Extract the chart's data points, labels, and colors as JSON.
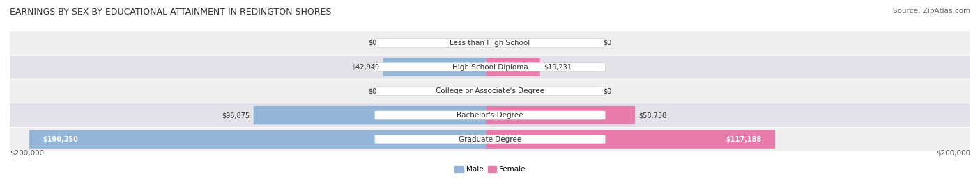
{
  "title": "EARNINGS BY SEX BY EDUCATIONAL ATTAINMENT IN REDINGTON SHORES",
  "source": "Source: ZipAtlas.com",
  "categories": [
    "Less than High School",
    "High School Diploma",
    "College or Associate's Degree",
    "Bachelor's Degree",
    "Graduate Degree"
  ],
  "male_values": [
    0,
    42949,
    0,
    96875,
    190250
  ],
  "female_values": [
    0,
    19231,
    0,
    58750,
    117188
  ],
  "male_color": "#93b5d8",
  "female_color": "#e87bac",
  "row_bg_even": "#efefef",
  "row_bg_odd": "#e2e2e8",
  "max_value": 200000,
  "xlabel_left": "$200,000",
  "xlabel_right": "$200,000",
  "legend_male": "Male",
  "legend_female": "Female",
  "title_fontsize": 9,
  "source_fontsize": 7.5,
  "label_fontsize": 7.5,
  "bar_label_fontsize": 7.0,
  "figsize": [
    14.06,
    2.68
  ],
  "dpi": 100
}
